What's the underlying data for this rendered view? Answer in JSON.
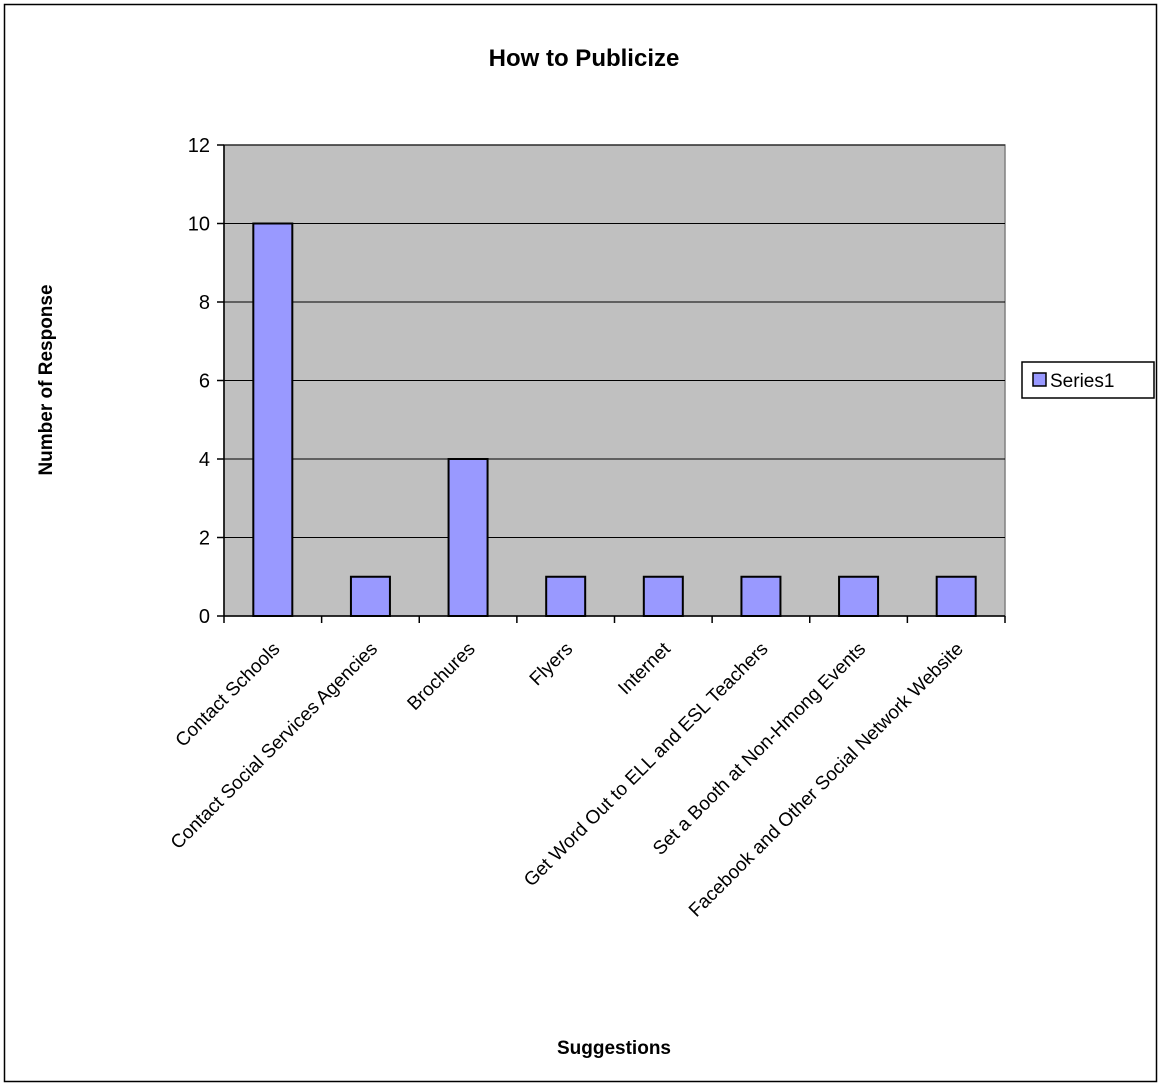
{
  "chart_data": {
    "type": "bar",
    "title": "How to Publicize",
    "xlabel": "Suggestions",
    "ylabel": "Number of Response",
    "categories": [
      "Contact Schools",
      "Contact Social Services Agencies",
      "Brochures",
      "Flyers",
      "Internet",
      "Get Word Out to ELL and ESL Teachers",
      "Set a Booth at Non-Hmong Events",
      "Facebook and Other Social Network Website"
    ],
    "series": [
      {
        "name": "Series1",
        "values": [
          10,
          1,
          4,
          1,
          1,
          1,
          1,
          1
        ]
      }
    ],
    "ylim": [
      0,
      12
    ],
    "yticks": [
      0,
      2,
      4,
      6,
      8,
      10,
      12
    ],
    "grid": true,
    "legend_position": "right",
    "colors": {
      "bar_fill": "#9999ff",
      "plot_background": "#c0c0c0",
      "gridline": "#000000"
    }
  }
}
